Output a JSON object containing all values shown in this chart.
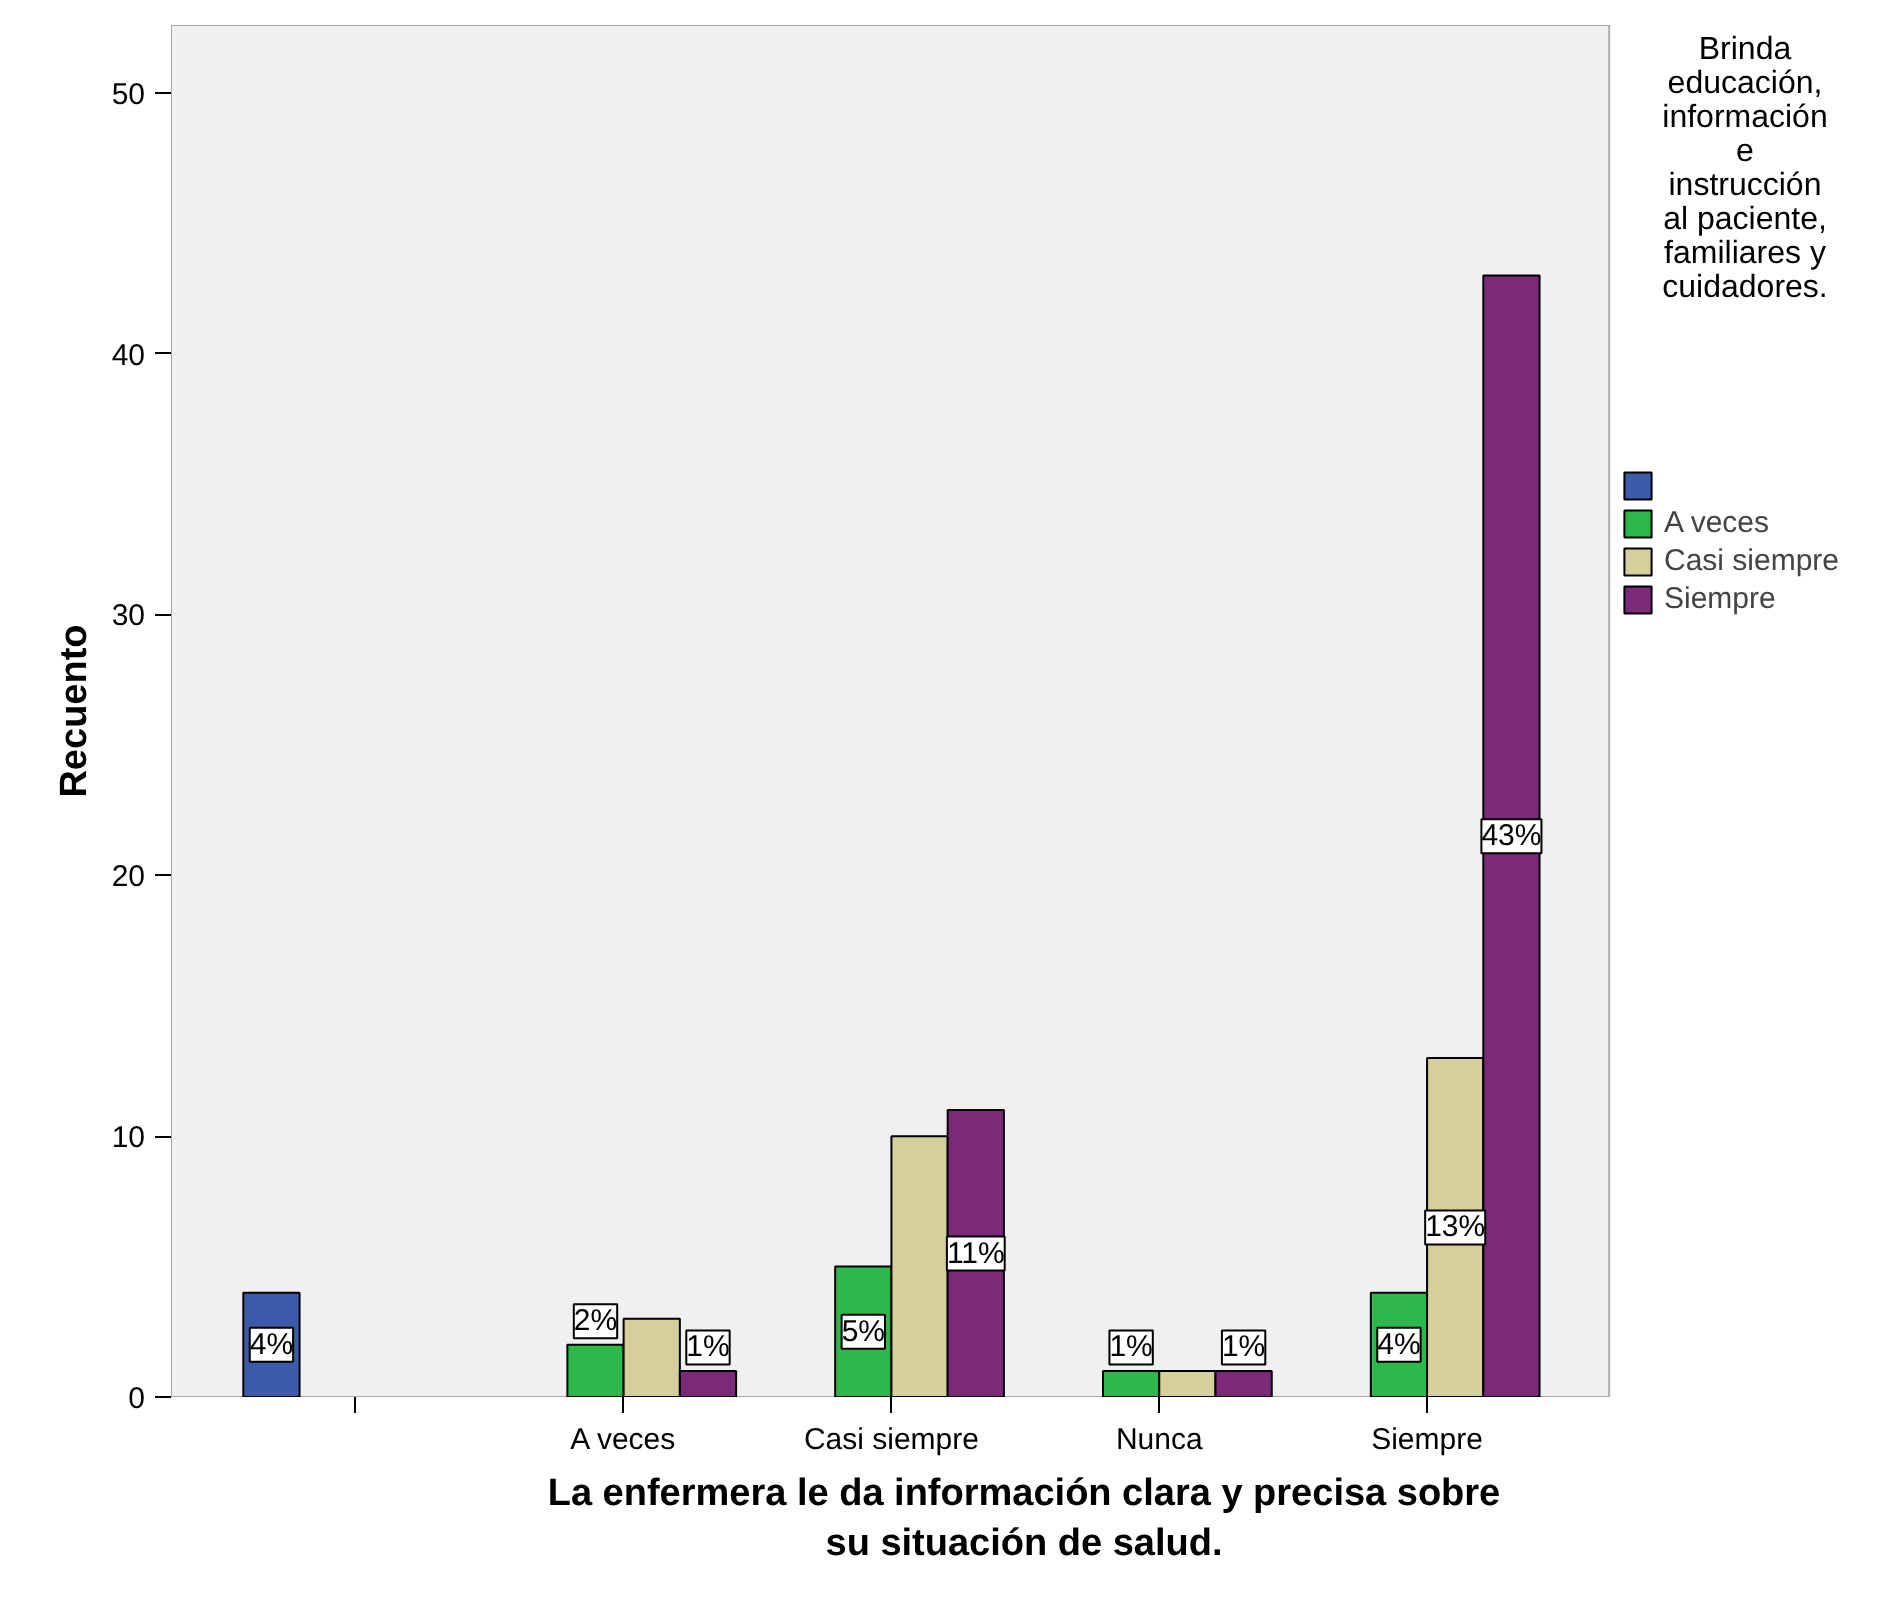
{
  "chart_data": {
    "type": "bar",
    "xlabel": "La enfermera le da información clara y precisa sobre su situación de salud.",
    "ylabel": "Recuento",
    "legend_title": "Brinda educación, información e instrucción al paciente, familiares y cuidadores.",
    "categories": [
      null,
      "A veces",
      "Casi siempre",
      "Nunca",
      "Siempre"
    ],
    "series": [
      {
        "color": "#3c5ba8",
        "values": [
          4,
          null,
          null,
          null,
          null
        ],
        "value_labels": [
          "4%",
          null,
          null,
          null,
          null
        ]
      },
      {
        "name": "A veces",
        "color": "#2eb84b",
        "values": [
          null,
          2,
          5,
          1,
          4
        ],
        "value_labels": [
          null,
          "2%",
          "5%",
          "1%",
          "4%"
        ]
      },
      {
        "name": "Casi siempre",
        "color": "#d4cf9b",
        "values": [
          null,
          3,
          10,
          1,
          13
        ],
        "value_labels": [
          null,
          null,
          null,
          null,
          "13%"
        ]
      },
      {
        "name": "Siempre",
        "color": "#7a2a78",
        "values": [
          null,
          1,
          11,
          1,
          43
        ],
        "value_labels": [
          null,
          "1%",
          "11%",
          "1%",
          "43%"
        ]
      }
    ],
    "ylim": [
      0,
      52.6
    ],
    "yticks": [
      0,
      10,
      20,
      30,
      40,
      50
    ],
    "grid": false,
    "legend": "right"
  }
}
